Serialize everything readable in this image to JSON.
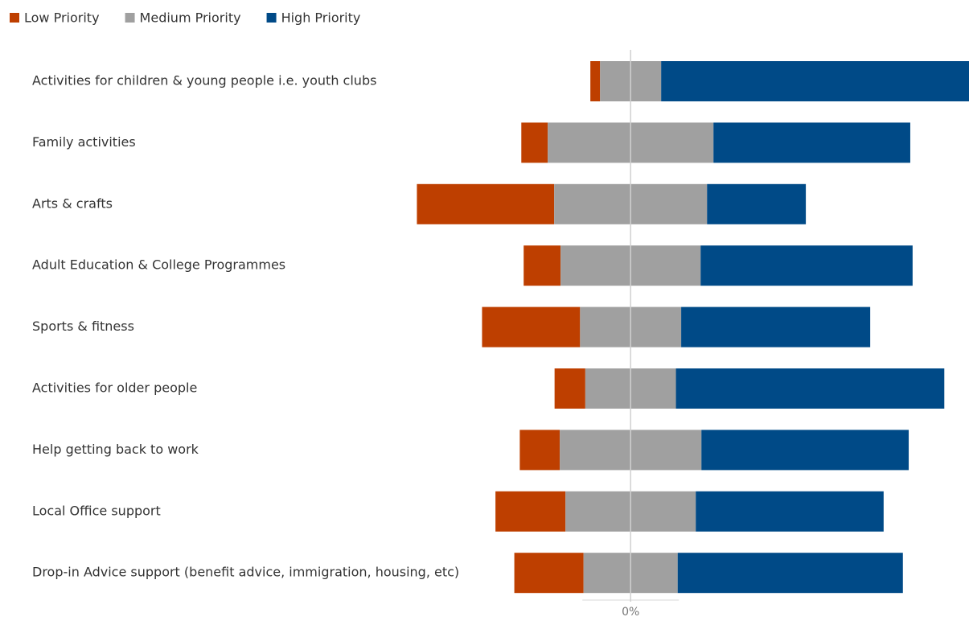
{
  "chart_data": {
    "type": "diverging-bar",
    "categories": [
      "Activities for children & young people i.e. youth clubs",
      "Family activities",
      "Arts & crafts",
      "Adult Education & College Programmes",
      "Sports & fitness",
      "Activities for older people",
      "Help getting back to work",
      "Local Office support",
      "Drop-in Advice support (benefit advice, immigration, housing, etc)"
    ],
    "series": [
      {
        "name": "Low Priority",
        "color": "#be3f00",
        "values": [
          2.5,
          6.8,
          35.3,
          9.5,
          25.2,
          7.9,
          10.3,
          18,
          17.8
        ]
      },
      {
        "name": "Medium Priority",
        "color": "#a0a0a0",
        "values": [
          15.7,
          42.6,
          39.3,
          36,
          26,
          23.3,
          36.4,
          33.5,
          24.2
        ]
      },
      {
        "name": "High Priority",
        "color": "#004a87",
        "values": [
          81.8,
          50.6,
          25.4,
          54.5,
          48.6,
          69,
          53.3,
          48.3,
          57.9
        ]
      }
    ],
    "xlim": [
      -60,
      87
    ],
    "xticks": [
      {
        "value": 0,
        "label": "0%"
      }
    ],
    "legend": "top-left"
  }
}
